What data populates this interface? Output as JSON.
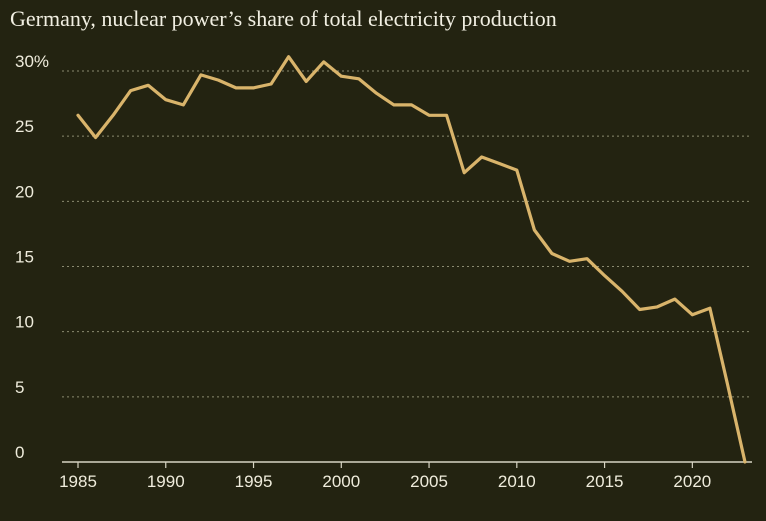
{
  "colors": {
    "background": "#232311",
    "line": "#d9b46b",
    "grid": "#8a8a70",
    "axis": "#d8d5c4",
    "text": "#efecdc"
  },
  "chart_data": {
    "type": "line",
    "title": "Germany, nuclear power’s share of total electricity production",
    "xlabel": "",
    "ylabel": "",
    "xlim": [
      1985,
      2023
    ],
    "ylim": [
      0,
      30
    ],
    "grid": true,
    "x_ticks": [
      1985,
      1990,
      1995,
      2000,
      2005,
      2010,
      2015,
      2020
    ],
    "x_tick_labels": [
      "1985",
      "1990",
      "1995",
      "2000",
      "2005",
      "2010",
      "2015",
      "2020"
    ],
    "y_ticks": [
      0,
      5,
      10,
      15,
      20,
      25,
      30
    ],
    "y_tick_labels": [
      "0",
      "5",
      "10",
      "15",
      "20",
      "25",
      "30%"
    ],
    "series": [
      {
        "x": [
          1985,
          1986,
          1987,
          1988,
          1989,
          1990,
          1991,
          1992,
          1993,
          1994,
          1995,
          1996,
          1997,
          1998,
          1999,
          2000,
          2001,
          2002,
          2003,
          2004,
          2005,
          2006,
          2007,
          2008,
          2009,
          2010,
          2011,
          2012,
          2013,
          2014,
          2015,
          2016,
          2017,
          2018,
          2019,
          2020,
          2021,
          2022,
          2023
        ],
        "values": [
          26.6,
          24.9,
          26.6,
          28.5,
          28.9,
          27.8,
          27.4,
          29.7,
          29.3,
          28.7,
          28.7,
          29.0,
          31.1,
          29.2,
          30.7,
          29.6,
          29.4,
          28.3,
          27.4,
          27.4,
          26.6,
          26.6,
          22.2,
          23.4,
          22.9,
          22.4,
          17.8,
          16.0,
          15.4,
          15.6,
          14.3,
          13.1,
          11.7,
          11.9,
          12.5,
          11.3,
          11.8,
          6.0,
          0.0
        ]
      }
    ]
  }
}
